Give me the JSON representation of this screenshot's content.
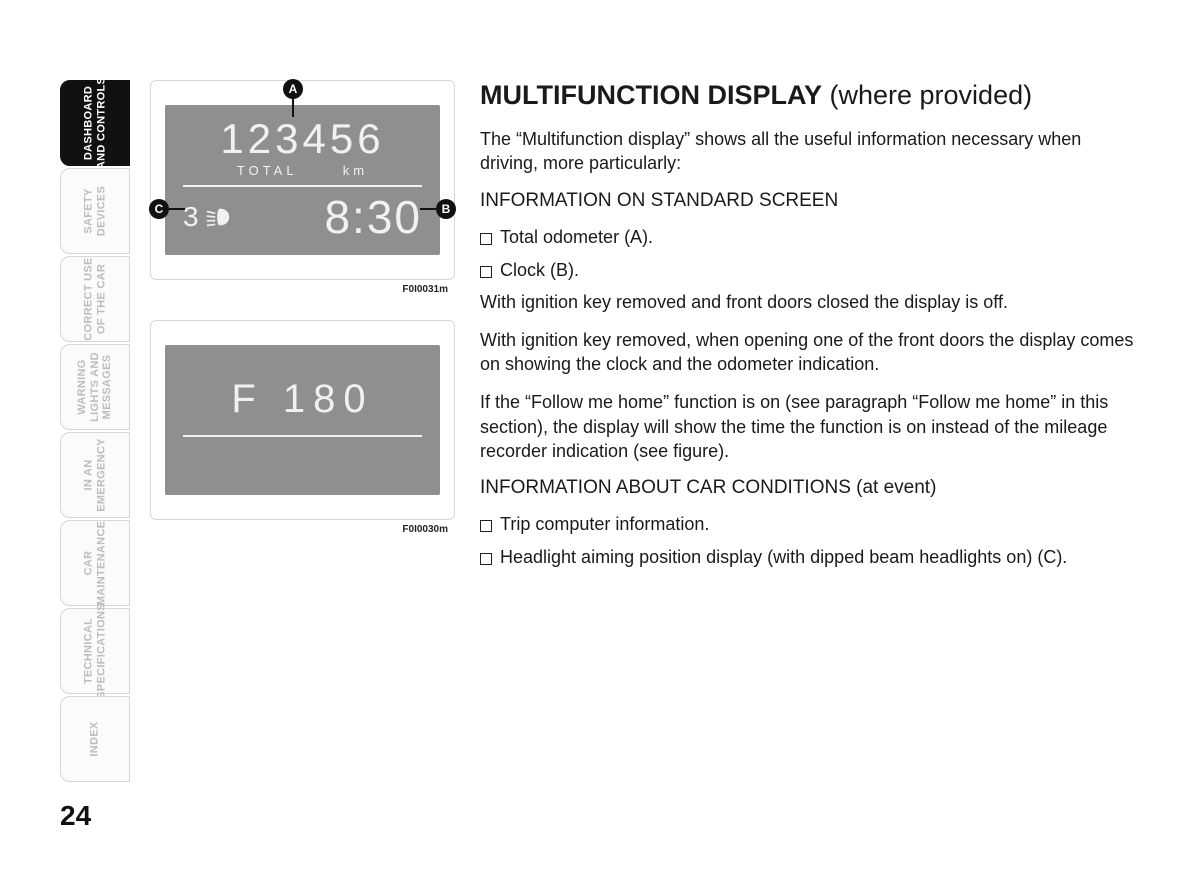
{
  "page_number": "24",
  "tabs": [
    {
      "label": "DASHBOARD\nAND CONTROLS",
      "active": true
    },
    {
      "label": "SAFETY\nDEVICES",
      "active": false
    },
    {
      "label": "CORRECT USE\nOF THE CAR",
      "active": false
    },
    {
      "label": "WARNING\nLIGHTS AND\nMESSAGES",
      "active": false
    },
    {
      "label": "IN AN\nEMERGENCY",
      "active": false
    },
    {
      "label": "CAR\nMAINTENANCE",
      "active": false
    },
    {
      "label": "TECHNICAL\nSPECIFICATIONS",
      "active": false
    },
    {
      "label": "INDEX",
      "active": false
    }
  ],
  "figure1": {
    "caption": "F0I0031m",
    "callouts": {
      "a": "A",
      "b": "B",
      "c": "C"
    },
    "lcd": {
      "odometer": "123456",
      "sub_left": "TOTAL",
      "sub_right": "km",
      "aim_level": "3",
      "clock": "8:30",
      "bg_color": "#8f8f8f",
      "fg_color": "#f1f1f1"
    }
  },
  "figure2": {
    "caption": "F0I0030m",
    "lcd": {
      "text": "F  180",
      "bg_color": "#8f8f8f",
      "fg_color": "#f1f1f1"
    }
  },
  "content": {
    "title_bold": "MULTIFUNCTION DISPLAY",
    "title_light": " (where provided)",
    "intro": "The “Multifunction display” shows all the useful information necessary when driving, more particularly:",
    "section1_heading": "INFORMATION ON STANDARD SCREEN",
    "bullets1": [
      "Total odometer (A).",
      "Clock (B)."
    ],
    "para1": "With ignition key removed and front doors closed the display is off.",
    "para2": "With ignition key removed, when opening one of the front doors the display comes on showing the clock and the odometer indication.",
    "para3": "If the “Follow me home” function is on (see paragraph “Follow me home” in this section), the display will show the time the function is on instead of the mileage recorder indication (see figure).",
    "section2_heading": "INFORMATION ABOUT CAR CONDITIONS (at event)",
    "bullets2": [
      "Trip computer information.",
      "Headlight aiming position display (with dipped beam headlights on) (C)."
    ]
  }
}
